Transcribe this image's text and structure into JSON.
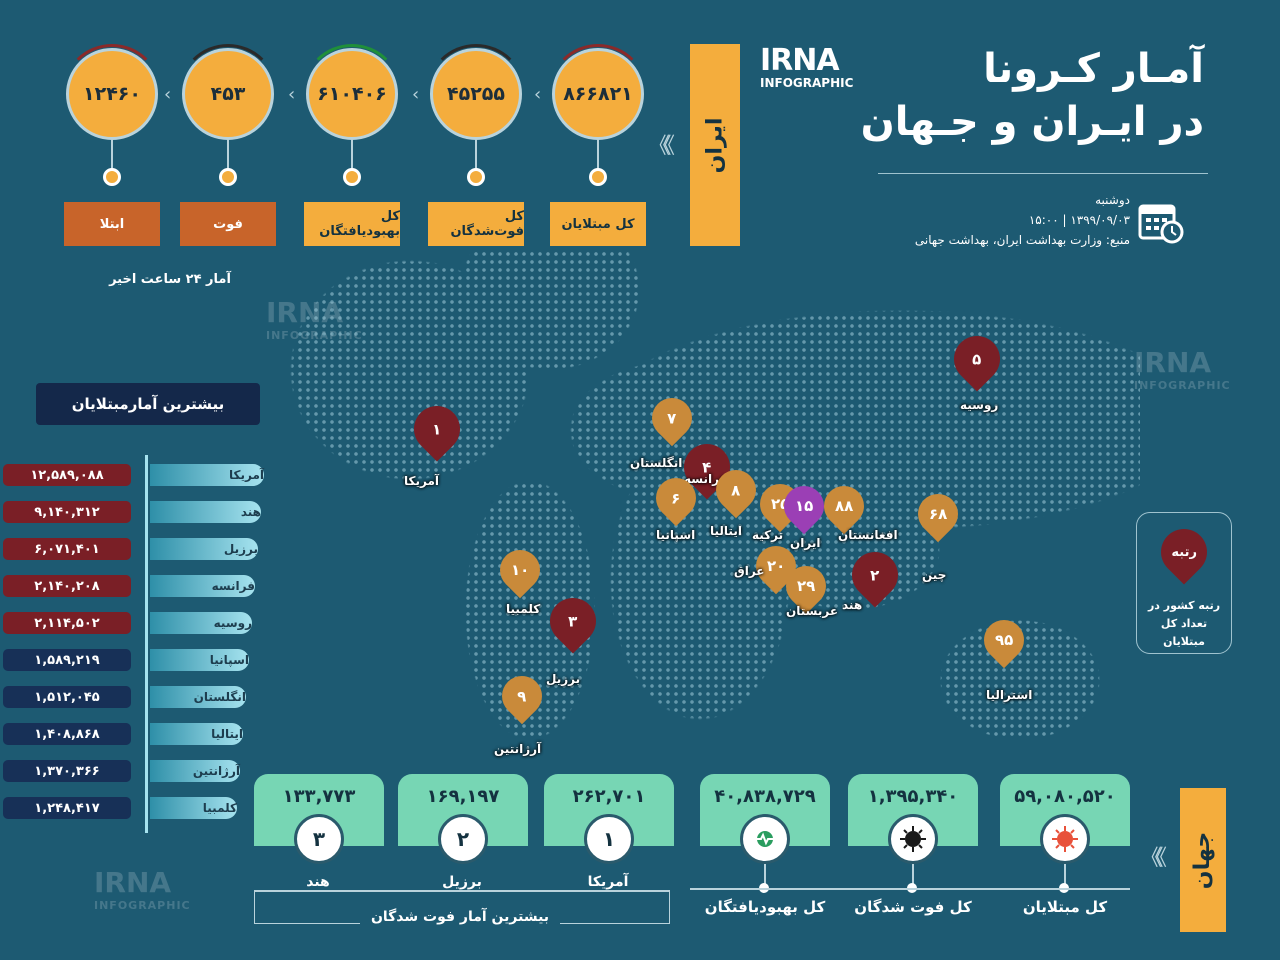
{
  "header": {
    "title_line1": "آمـار کـرونا",
    "title_line2": "در ایـران و جـهان",
    "logo_main": "IRNA",
    "logo_sub": "INFOGRAPHIC",
    "day": "دوشنبه",
    "date_time": "۱۳۹۹/۰۹/۰۳  |  ۱۵:۰۰",
    "source": "منبع: وزارت بهداشت ایران، بهداشت جهانی"
  },
  "iran": {
    "section_label": "ایران",
    "stats": [
      {
        "value": "۸۶۶۸۲۱",
        "label": "کل مبتلایان",
        "color": "#f4ad3d",
        "arc": "#8a2a2a"
      },
      {
        "value": "۴۵۲۵۵",
        "label": "کل فوت‌شدگان",
        "color": "#f4ad3d",
        "arc": "#2a2a2a"
      },
      {
        "value": "۶۱۰۴۰۶",
        "label": "کل بهبودیافتگان",
        "color": "#f4ad3d",
        "arc": "#1f8f3a"
      },
      {
        "value": "۴۵۳",
        "label": "فوت",
        "color": "#f4ad3d",
        "arc": "#2a2a2a"
      },
      {
        "value": "۱۲۴۶۰",
        "label": "ابتلا",
        "color": "#f4ad3d",
        "arc": "#8a2a2a"
      }
    ],
    "last24_caption": "آمار ۲۴ ساعت اخیر"
  },
  "top_infected": {
    "title": "بیشترین آمارمبتلایان",
    "rows": [
      {
        "country": "آمریکا",
        "value": "۱۲,۵۸۹,۰۸۸",
        "color": "#7a1f26"
      },
      {
        "country": "هند",
        "value": "۹,۱۴۰,۳۱۲",
        "color": "#7a1f26"
      },
      {
        "country": "برزیل",
        "value": "۶,۰۷۱,۴۰۱",
        "color": "#7a1f26"
      },
      {
        "country": "فرانسه",
        "value": "۲,۱۴۰,۲۰۸",
        "color": "#7a1f26"
      },
      {
        "country": "روسیه",
        "value": "۲,۱۱۴,۵۰۲",
        "color": "#7a1f26"
      },
      {
        "country": "اسپانیا",
        "value": "۱,۵۸۹,۲۱۹",
        "color": "#173057"
      },
      {
        "country": "انگلستان",
        "value": "۱,۵۱۲,۰۴۵",
        "color": "#173057"
      },
      {
        "country": "ایتالیا",
        "value": "۱,۴۰۸,۸۶۸",
        "color": "#173057"
      },
      {
        "country": "آرژانتین",
        "value": "۱,۳۷۰,۳۶۶",
        "color": "#173057"
      },
      {
        "country": "کلمبیا",
        "value": "۱,۲۴۸,۴۱۷",
        "color": "#173057"
      }
    ]
  },
  "map_pins": [
    {
      "rank": "۱",
      "name": "آمریکا",
      "color": "#7a1f26"
    },
    {
      "rank": "۷",
      "name": "انگلستان",
      "color": "#c98a3a"
    },
    {
      "rank": "۴",
      "name": "فرانسه",
      "color": "#7a1f26"
    },
    {
      "rank": "۶",
      "name": "اسپانیا",
      "color": "#c98a3a"
    },
    {
      "rank": "۸",
      "name": "ایتالیا",
      "color": "#c98a3a"
    },
    {
      "rank": "۲۵",
      "name": "ترکیه",
      "color": "#c98a3a"
    },
    {
      "rank": "۱۵",
      "name": "ایران",
      "color": "#9b3fb5"
    },
    {
      "rank": "۸۸",
      "name": "افغانستان",
      "color": "#c98a3a"
    },
    {
      "rank": "۲۰",
      "name": "عراق",
      "color": "#c98a3a"
    },
    {
      "rank": "۲۹",
      "name": "عربستان",
      "color": "#c98a3a"
    },
    {
      "rank": "۲",
      "name": "هند",
      "color": "#7a1f26"
    },
    {
      "rank": "۶۸",
      "name": "چین",
      "color": "#c98a3a"
    },
    {
      "rank": "۵",
      "name": "روسیه",
      "color": "#7a1f26"
    },
    {
      "rank": "۱۰",
      "name": "کلمبیا",
      "color": "#c98a3a"
    },
    {
      "rank": "۳",
      "name": "برزیل",
      "color": "#7a1f26"
    },
    {
      "rank": "۹",
      "name": "آرژانتین",
      "color": "#c98a3a"
    },
    {
      "rank": "۹۵",
      "name": "استرالیا",
      "color": "#c98a3a"
    }
  ],
  "legend": {
    "pin_text": "رتبه",
    "caption": "رتبه کشور در تعداد کل مبتلایان"
  },
  "world": {
    "section_label": "جهان",
    "stats": [
      {
        "value": "۵۹,۰۸۰,۵۲۰",
        "label": "کل مبتلایان",
        "icon": "virus-icon"
      },
      {
        "value": "۱,۳۹۵,۳۴۰",
        "label": "کل فوت شدگان",
        "icon": "black-virus-icon"
      },
      {
        "value": "۴۰,۸۳۸,۷۲۹",
        "label": "کل بهبودیافتگان",
        "icon": "heart-pulse-icon"
      }
    ],
    "top_deaths": [
      {
        "rank": "۱",
        "value": "۲۶۲,۷۰۱",
        "country": "آمریکا"
      },
      {
        "rank": "۲",
        "value": "۱۶۹,۱۹۷",
        "country": "برزیل"
      },
      {
        "rank": "۳",
        "value": "۱۳۳,۷۷۳",
        "country": "هند"
      }
    ],
    "top_deaths_caption": "بیشترین آمار فوت شدگان"
  }
}
